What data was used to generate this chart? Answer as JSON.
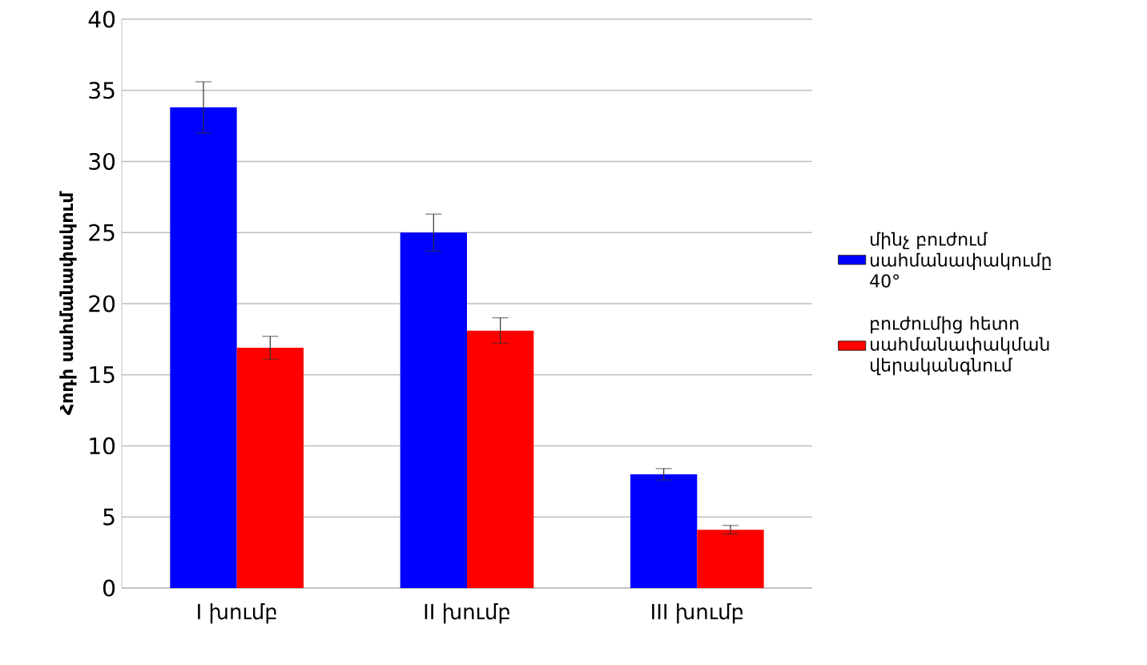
{
  "chart_data": {
    "type": "bar",
    "ylabel": "Հոդի սահմանափակում",
    "categories": [
      "I խումբ",
      "II խումբ",
      "III խումբ"
    ],
    "series": [
      {
        "name": "մինչ բուժում սահմանափակումը 40°",
        "color": "#0000ff",
        "values": [
          33.8,
          25.0,
          8.0
        ],
        "errors": [
          1.8,
          1.3,
          0.4
        ]
      },
      {
        "name": "բուժումից հետո սահմանափակման վերականգնում",
        "color": "#ff0000",
        "values": [
          16.9,
          18.1,
          4.1
        ],
        "errors": [
          0.8,
          0.9,
          0.3
        ]
      }
    ],
    "ylim": [
      0,
      40
    ],
    "yticks": [
      0,
      5,
      10,
      15,
      20,
      25,
      30,
      35,
      40
    ],
    "grid": "y",
    "legend": "right"
  }
}
